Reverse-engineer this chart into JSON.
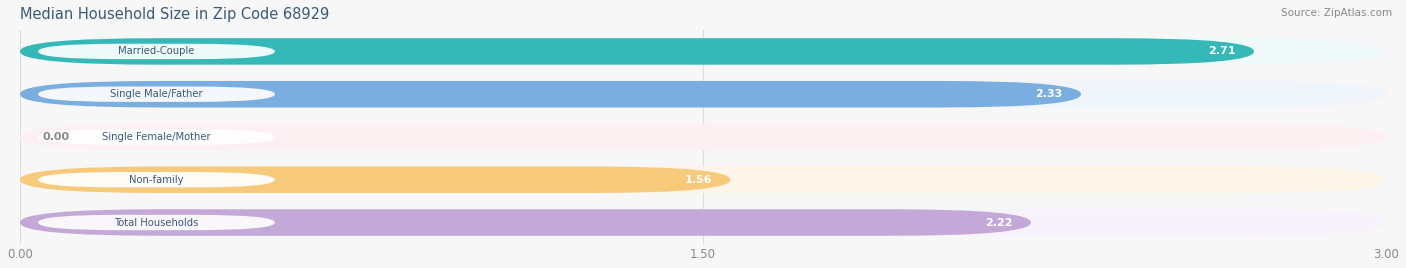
{
  "title": "Median Household Size in Zip Code 68929",
  "source": "Source: ZipAtlas.com",
  "categories": [
    "Married-Couple",
    "Single Male/Father",
    "Single Female/Mother",
    "Non-family",
    "Total Households"
  ],
  "values": [
    2.71,
    2.33,
    0.0,
    1.56,
    2.22
  ],
  "bar_colors": [
    "#35b8b8",
    "#7aaee0",
    "#f4a0b5",
    "#f7c97a",
    "#c4a8d8"
  ],
  "bar_bg_colors": [
    "#f0fafa",
    "#f0f4fb",
    "#fdf0f3",
    "#fdf5e8",
    "#f7f2fb"
  ],
  "label_bg_color": "#ffffff",
  "xlim": [
    0.0,
    3.0
  ],
  "xticks": [
    0.0,
    1.5,
    3.0
  ],
  "xtick_labels": [
    "0.00",
    "1.50",
    "3.00"
  ],
  "title_color": "#3a5a7a",
  "label_color": "#3a5a7a",
  "value_label_color_inside": "#ffffff",
  "value_label_color_outside": "#888888",
  "grid_color": "#dddddd",
  "background_color": "#f7f7f7",
  "bar_height": 0.62,
  "bar_gap": 0.18,
  "value_threshold": 0.25
}
